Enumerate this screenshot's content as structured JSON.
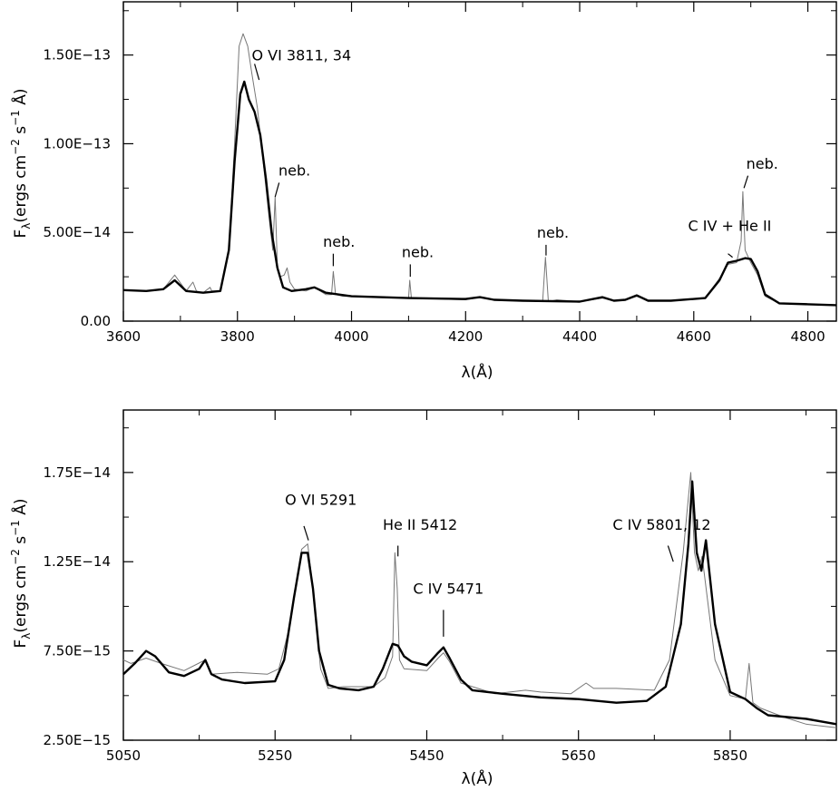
{
  "chart_data": [
    {
      "type": "line",
      "xlabel": "λ(Å)",
      "ylabel": "Fλ(ergs cm⁻² s⁻¹ Å)",
      "ylabel_parts": {
        "f": "F",
        "sub": "λ",
        "a": "(ergs cm",
        "sup1": "−2",
        "b": " s",
        "sup2": "−1",
        "c": " Å)"
      },
      "xlim": [
        3600,
        4850
      ],
      "ylim": [
        0,
        1.8e-13
      ],
      "x_ticks": [
        3600,
        3800,
        4000,
        4200,
        4400,
        4600,
        4800
      ],
      "x_tick_labels": [
        "3600",
        "3800",
        "4000",
        "4200",
        "4400",
        "4600",
        "4800"
      ],
      "y_ticks": [
        0,
        5e-14,
        1e-13,
        1.5e-13
      ],
      "y_tick_labels": [
        "0.00",
        "5.00E−14",
        "1.00E−13",
        "1.50E−13"
      ],
      "grid": false,
      "series": [
        {
          "style": "thick",
          "x": [
            3600,
            3640,
            3670,
            3690,
            3710,
            3740,
            3770,
            3785,
            3795,
            3805,
            3812,
            3820,
            3830,
            3840,
            3850,
            3860,
            3870,
            3880,
            3895,
            3920,
            3935,
            3955,
            4000,
            4100,
            4200,
            4225,
            4250,
            4300,
            4400,
            4440,
            4460,
            4480,
            4500,
            4520,
            4560,
            4620,
            4645,
            4660,
            4675,
            4690,
            4700,
            4712,
            4725,
            4750,
            4800,
            4850
          ],
          "y": [
            1.75e-14,
            1.7e-14,
            1.8e-14,
            2.3e-14,
            1.7e-14,
            1.6e-14,
            1.7e-14,
            4e-14,
            9e-14,
            1.28e-13,
            1.35e-13,
            1.25e-13,
            1.18e-13,
            1.05e-13,
            8e-14,
            5e-14,
            3e-14,
            1.9e-14,
            1.7e-14,
            1.8e-14,
            1.9e-14,
            1.6e-14,
            1.4e-14,
            1.3e-14,
            1.25e-14,
            1.35e-14,
            1.2e-14,
            1.15e-14,
            1.1e-14,
            1.35e-14,
            1.15e-14,
            1.2e-14,
            1.45e-14,
            1.15e-14,
            1.15e-14,
            1.3e-14,
            2.3e-14,
            3.3e-14,
            3.4e-14,
            3.55e-14,
            3.5e-14,
            2.8e-14,
            1.5e-14,
            1e-14,
            9.5e-15,
            9e-15
          ]
        },
        {
          "style": "thin",
          "x": [
            3600,
            3640,
            3670,
            3690,
            3710,
            3722,
            3728,
            3740,
            3752,
            3755,
            3770,
            3785,
            3795,
            3803,
            3810,
            3818,
            3825,
            3835,
            3845,
            3855,
            3862,
            3866,
            3870,
            3875,
            3882,
            3887,
            3892,
            3900,
            3920,
            3935,
            3955,
            3965,
            3968,
            3972,
            3985,
            4100,
            4102,
            4105,
            4200,
            4225,
            4250,
            4300,
            4335,
            4340,
            4345,
            4360,
            4400,
            4440,
            4460,
            4480,
            4500,
            4520,
            4560,
            4620,
            4645,
            4660,
            4675,
            4683,
            4686,
            4690,
            4700,
            4712,
            4725,
            4750,
            4800,
            4850
          ],
          "y": [
            1.75e-14,
            1.7e-14,
            1.8e-14,
            2.6e-14,
            1.7e-14,
            2.2e-14,
            1.7e-14,
            1.6e-14,
            1.9e-14,
            1.7e-14,
            1.7e-14,
            4e-14,
            1e-13,
            1.55e-13,
            1.62e-13,
            1.55e-13,
            1.4e-13,
            1.2e-13,
            9e-14,
            6e-14,
            4e-14,
            7e-14,
            3e-14,
            2.5e-14,
            2.6e-14,
            3e-14,
            2.2e-14,
            1.8e-14,
            1.7e-14,
            1.9e-14,
            1.5e-14,
            1.5e-14,
            2.8e-14,
            1.5e-14,
            1.4e-14,
            1.3e-14,
            2.3e-14,
            1.3e-14,
            1.2e-14,
            1.35e-14,
            1.2e-14,
            1.15e-14,
            1.1e-14,
            3.6e-14,
            1.1e-14,
            1.2e-14,
            1.1e-14,
            1.3e-14,
            1.15e-14,
            1.2e-14,
            1.4e-14,
            1.15e-14,
            1.15e-14,
            1.3e-14,
            2.4e-14,
            3.2e-14,
            3.3e-14,
            4.5e-14,
            7.3e-14,
            4e-14,
            3.3e-14,
            2.6e-14,
            1.4e-14,
            1e-14,
            9.5e-15,
            9e-15
          ]
        }
      ],
      "annotations": [
        {
          "text": "O VI 3811, 34",
          "x": 3825,
          "y": 1.47e-13,
          "lx": [
            3830,
            3838
          ],
          "ly": [
            1.45e-13,
            1.36e-13
          ]
        },
        {
          "text": "neb.",
          "x": 3872,
          "y": 8.2e-14,
          "lx": [
            3873,
            3866
          ],
          "ly": [
            7.8e-14,
            7e-14
          ]
        },
        {
          "text": "neb.",
          "x": 3950,
          "y": 4.2e-14,
          "lx": [
            3968,
            3968
          ],
          "ly": [
            3.8e-14,
            3.1e-14
          ]
        },
        {
          "text": "neb.",
          "x": 4088,
          "y": 3.6e-14,
          "lx": [
            4103,
            4103
          ],
          "ly": [
            3.2e-14,
            2.5e-14
          ]
        },
        {
          "text": "neb.",
          "x": 4325,
          "y": 4.7e-14,
          "lx": [
            4341,
            4341
          ],
          "ly": [
            4.3e-14,
            3.7e-14
          ]
        },
        {
          "text": "C IV + He II",
          "x": 4590,
          "y": 5.1e-14,
          "lx": [
            4660,
            4668
          ],
          "ly": [
            3.8e-14,
            3.6e-14
          ]
        },
        {
          "text": "neb.",
          "x": 4692,
          "y": 8.6e-14,
          "lx": [
            4695,
            4688
          ],
          "ly": [
            8.2e-14,
            7.5e-14
          ]
        }
      ]
    },
    {
      "type": "line",
      "xlabel": "λ(Å)",
      "ylabel": "Fλ(ergs cm⁻² s⁻¹ Å)",
      "ylabel_parts": {
        "f": "F",
        "sub": "λ",
        "a": "(ergs cm",
        "sup1": "−2",
        "b": " s",
        "sup2": "−1",
        "c": " Å)"
      },
      "xlim": [
        5050,
        5990
      ],
      "ylim": [
        2.5e-15,
        2.1e-14
      ],
      "x_ticks": [
        5050,
        5250,
        5450,
        5650,
        5850
      ],
      "x_tick_labels": [
        "5050",
        "5250",
        "5450",
        "5650",
        "5850"
      ],
      "y_ticks": [
        2.5e-15,
        7.5e-15,
        1.25e-14,
        1.75e-14
      ],
      "y_tick_labels": [
        "2.50E−15",
        "7.50E−15",
        "1.25E−14",
        "1.75E−14"
      ],
      "grid": false,
      "series": [
        {
          "style": "thick",
          "x": [
            5050,
            5065,
            5080,
            5092,
            5110,
            5130,
            5150,
            5158,
            5166,
            5180,
            5210,
            5250,
            5262,
            5275,
            5285,
            5293,
            5300,
            5308,
            5320,
            5335,
            5360,
            5380,
            5392,
            5405,
            5412,
            5420,
            5430,
            5450,
            5465,
            5472,
            5480,
            5495,
            5510,
            5550,
            5600,
            5650,
            5700,
            5740,
            5765,
            5785,
            5795,
            5800,
            5806,
            5812,
            5818,
            5830,
            5850,
            5870,
            5885,
            5900,
            5950,
            5990
          ],
          "y": [
            6.2e-15,
            6.8e-15,
            7.5e-15,
            7.2e-15,
            6.3e-15,
            6.1e-15,
            6.5e-15,
            7e-15,
            6.2e-15,
            5.9e-15,
            5.7e-15,
            5.8e-15,
            7e-15,
            1.05e-14,
            1.3e-14,
            1.3e-14,
            1.1e-14,
            7.5e-15,
            5.6e-15,
            5.4e-15,
            5.3e-15,
            5.5e-15,
            6.5e-15,
            7.9e-15,
            7.8e-15,
            7.2e-15,
            6.9e-15,
            6.7e-15,
            7.4e-15,
            7.7e-15,
            7.1e-15,
            5.9e-15,
            5.3e-15,
            5.1e-15,
            4.9e-15,
            4.8e-15,
            4.6e-15,
            4.7e-15,
            5.5e-15,
            9e-15,
            1.35e-14,
            1.7e-14,
            1.3e-14,
            1.2e-14,
            1.37e-14,
            9e-15,
            5.2e-15,
            4.8e-15,
            4.3e-15,
            3.9e-15,
            3.7e-15,
            3.4e-15
          ]
        },
        {
          "style": "thin",
          "x": [
            5050,
            5060,
            5080,
            5100,
            5130,
            5158,
            5166,
            5200,
            5240,
            5255,
            5270,
            5285,
            5293,
            5300,
            5310,
            5320,
            5340,
            5380,
            5395,
            5405,
            5408,
            5411,
            5414,
            5420,
            5450,
            5465,
            5472,
            5480,
            5495,
            5540,
            5580,
            5600,
            5640,
            5660,
            5670,
            5700,
            5750,
            5770,
            5788,
            5798,
            5803,
            5808,
            5813,
            5830,
            5850,
            5870,
            5875,
            5880,
            5890,
            5920,
            5950,
            5990
          ],
          "y": [
            7e-15,
            6.8e-15,
            7.1e-15,
            6.8e-15,
            6.4e-15,
            7e-15,
            6.2e-15,
            6.3e-15,
            6.2e-15,
            6.5e-15,
            9e-15,
            1.32e-14,
            1.35e-14,
            1.1e-14,
            6.5e-15,
            5.4e-15,
            5.5e-15,
            5.5e-15,
            6e-15,
            7.2e-15,
            1.3e-14,
            1.1e-14,
            7e-15,
            6.5e-15,
            6.4e-15,
            7.1e-15,
            7.4e-15,
            6.9e-15,
            5.7e-15,
            5.1e-15,
            5.3e-15,
            5.2e-15,
            5.1e-15,
            5.7e-15,
            5.4e-15,
            5.4e-15,
            5.3e-15,
            7e-15,
            1.3e-14,
            1.75e-14,
            1.3e-14,
            1.2e-14,
            1.28e-14,
            7e-15,
            5e-15,
            4.8e-15,
            6.8e-15,
            4.6e-15,
            4.3e-15,
            3.8e-15,
            3.4e-15,
            3.2e-15
          ]
        }
      ],
      "annotations": [
        {
          "text": "O VI 5291",
          "x": 5263,
          "y": 1.57e-14,
          "lx": [
            5288,
            5294
          ],
          "ly": [
            1.45e-14,
            1.37e-14
          ]
        },
        {
          "text": "He II 5412",
          "x": 5392,
          "y": 1.43e-14,
          "lx": [
            5412,
            5412
          ],
          "ly": [
            1.34e-14,
            1.28e-14
          ]
        },
        {
          "text": "C IV 5471",
          "x": 5432,
          "y": 1.07e-14,
          "lx": [
            5472,
            5472
          ],
          "ly": [
            9.8e-15,
            8.3e-15
          ]
        },
        {
          "text": "C IV 5801, 12",
          "x": 5695,
          "y": 1.43e-14,
          "lx": [
            5768,
            5775
          ],
          "ly": [
            1.34e-14,
            1.25e-14
          ]
        }
      ]
    }
  ]
}
